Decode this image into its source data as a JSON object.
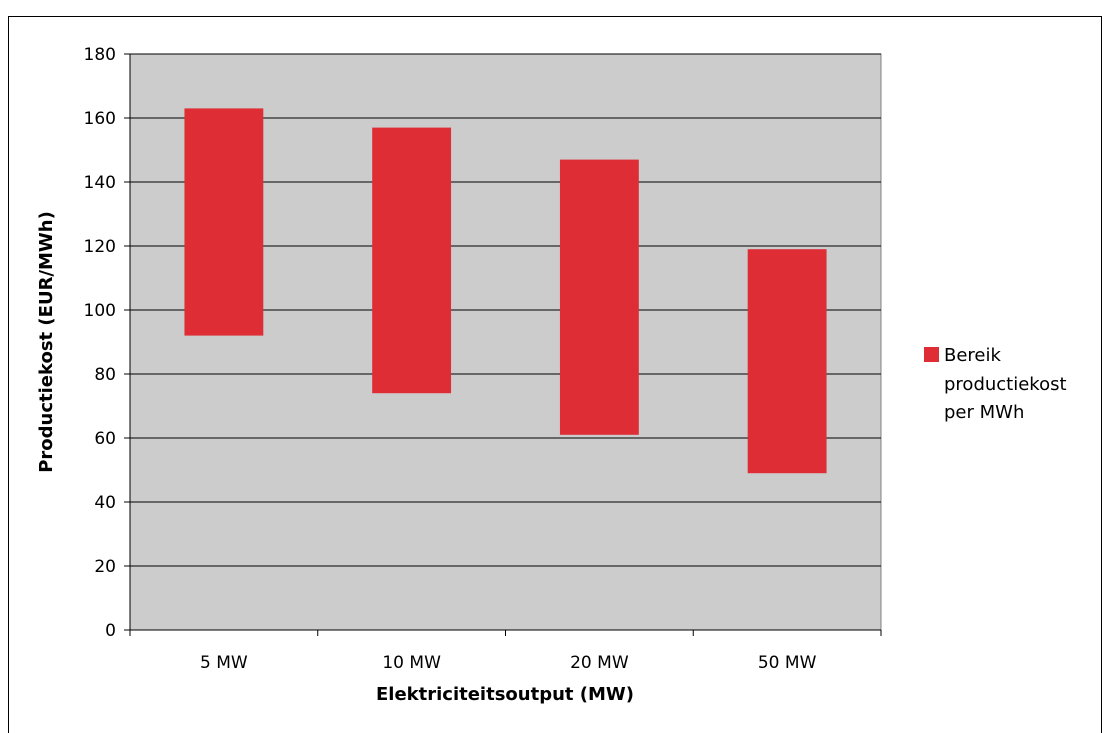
{
  "chart_data": {
    "type": "bar",
    "subtype": "floating-range",
    "categories": [
      "5 MW",
      "10 MW",
      "20 MW",
      "50 MW"
    ],
    "series": [
      {
        "name": "Bereik productiekost per MWh",
        "ranges": [
          [
            92,
            163
          ],
          [
            74,
            157
          ],
          [
            61,
            147
          ],
          [
            49,
            119
          ]
        ]
      }
    ],
    "xlabel": "Elektriciteitsoutput (MW)",
    "ylabel": "Productiekost (EUR/MWh)",
    "ylim": [
      0,
      180
    ],
    "yticks": [
      0,
      20,
      40,
      60,
      80,
      100,
      120,
      140,
      160,
      180
    ],
    "grid": true,
    "legend_position": "right",
    "legend_lines": [
      "Bereik",
      "productiekost",
      "per MWh"
    ],
    "colors": {
      "bar": "#de2d35",
      "plot_background": "#cccccc",
      "gridline": "#000000"
    }
  }
}
